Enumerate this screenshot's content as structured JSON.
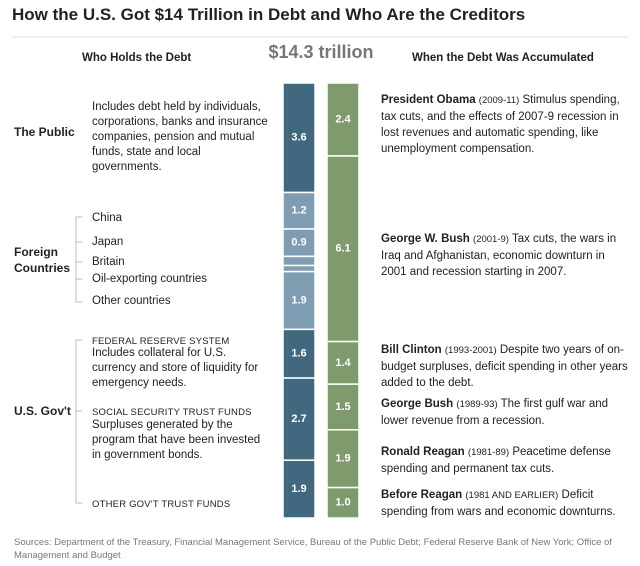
{
  "title": "How the U.S. Got $14 Trillion in Debt and Who Are the Creditors",
  "sources": "Sources: Department of the Treasury, Financial Management Service, Bureau of the Public Debt; Federal Reserve Bank of New York; Office of Management and Budget",
  "chart_data": {
    "type": "stacked_bar",
    "total_label": "$14.3 trillion",
    "ylim": [
      0,
      14.3
    ],
    "holders": {
      "title": "Who Holds the Debt",
      "groups": [
        {
          "name": "The Public",
          "color": "#42687f",
          "items": [
            {
              "label": "Includes debt held by individuals, corporations, banks and insurance companies, pension and mutual funds, state and local governments.",
              "value": 3.6
            }
          ]
        },
        {
          "name": "Foreign Countries",
          "color": "#7f9db2",
          "items": [
            {
              "label": "China",
              "value": 1.2
            },
            {
              "label": "Japan",
              "value": 0.9
            },
            {
              "label": "Britain",
              "value": 0.3
            },
            {
              "label": "Oil-exporting countries",
              "value": 0.2
            },
            {
              "label": "Other countries",
              "value": 1.9
            }
          ]
        },
        {
          "name": "U.S. Gov't",
          "color": "#42687f",
          "items": [
            {
              "heading": "FEDERAL RESERVE SYSTEM",
              "label": "Includes collateral for U.S. currency and store of liquidity for emergency needs.",
              "value": 1.6
            },
            {
              "heading": "SOCIAL SECURITY TRUST FUNDS",
              "label": "Surpluses generated by the program that have been invested in government bonds.",
              "value": 2.7
            },
            {
              "heading": "OTHER GOV'T TRUST FUNDS",
              "value": 1.9
            }
          ]
        }
      ]
    },
    "periods": {
      "title": "When the Debt Was Accumulated",
      "color": "#7f9a6d",
      "items": [
        {
          "president": "President Obama",
          "years": "(2009-11)",
          "text": "Stimulus spending, tax cuts, and the effects of 2007-9 recession in lost revenues and automatic spending, like unemployment compensation.",
          "value": 2.4
        },
        {
          "president": "George W. Bush",
          "years": "(2001-9)",
          "text": "Tax cuts, the wars in Iraq and Afghanistan, economic downturn in 2001 and recession starting in 2007.",
          "value": 6.1
        },
        {
          "president": "Bill Clinton",
          "years": "(1993-2001)",
          "text": "Despite two years of on-budget surpluses, deficit spending in other years added to the debt.",
          "value": 1.4
        },
        {
          "president": "George Bush",
          "years": "(1989-93)",
          "text": "The first gulf war and lower revenue from a recession.",
          "value": 1.5
        },
        {
          "president": "Ronald Reagan",
          "years": "(1981-89)",
          "text": "Peacetime defense spending and permanent tax cuts.",
          "value": 1.9
        },
        {
          "president": "Before Reagan",
          "years": "(1981 AND EARLIER)",
          "text": "Deficit spending from wars and economic downturns.",
          "value": 1.0,
          "value_label": "1.0"
        }
      ]
    }
  }
}
